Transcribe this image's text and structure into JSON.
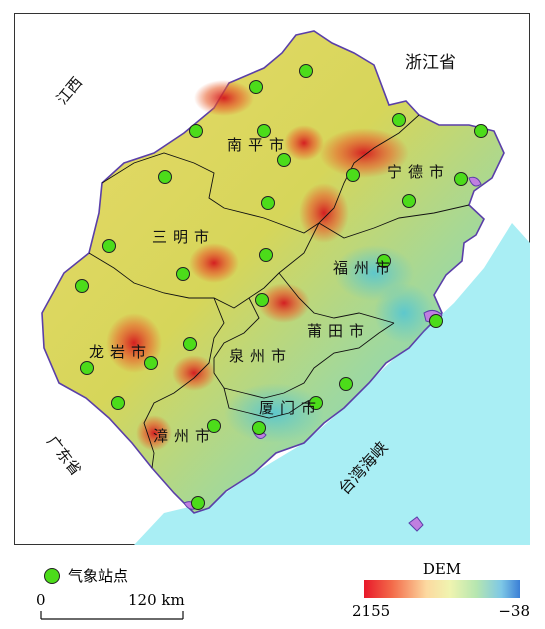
{
  "labels": {
    "jiangxi": "江西",
    "zhejiang": "浙江省",
    "guangdong": "广东省",
    "taiwan_strait": "台湾海峡"
  },
  "cities": {
    "nanping": "南平市",
    "ningde": "宁德市",
    "sanming": "三明市",
    "fuzhou": "福州市",
    "longyan": "龙岩市",
    "putian": "莆田市",
    "quanzhou": "泉州市",
    "xiamen": "厦门市",
    "zhangzhou": "漳州市"
  },
  "legend": {
    "station_label": "气象站点",
    "station_color": "#4cdc1a",
    "dem_title": "DEM",
    "dem_max": "2155",
    "dem_min": "−38"
  },
  "scale": {
    "zero": "0",
    "distance": "120 km"
  },
  "stations_count": 28
}
